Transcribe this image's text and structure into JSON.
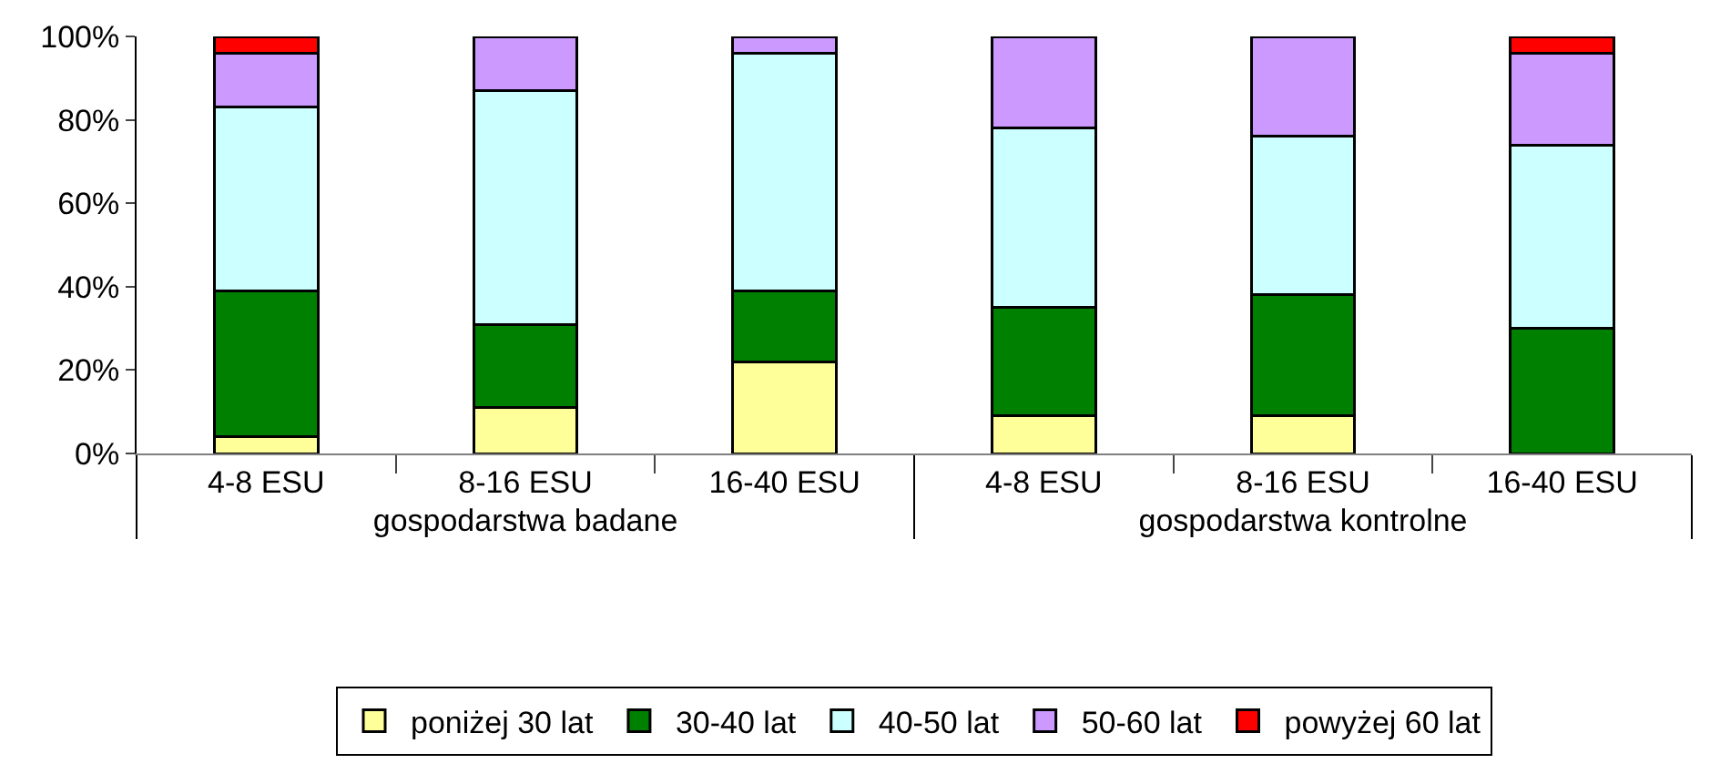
{
  "chart_data": {
    "type": "bar",
    "stacked": true,
    "categories": [
      "4-8 ESU",
      "8-16 ESU",
      "16-40 ESU",
      "4-8 ESU",
      "8-16 ESU",
      "16-40 ESU"
    ],
    "annotations": [
      "gospodarstwa badane",
      "gospodarstwa kontrolne"
    ],
    "series": [
      {
        "name": "poniżej 30 lat",
        "color": "#ffff99",
        "values": [
          4,
          11,
          22,
          9,
          9,
          null
        ]
      },
      {
        "name": "30-40 lat",
        "color": "#008000",
        "values": [
          35,
          20,
          17,
          26,
          29,
          30
        ]
      },
      {
        "name": "40-50 lat",
        "color": "#ccffff",
        "values": [
          44,
          56,
          57,
          43,
          38,
          44
        ]
      },
      {
        "name": "50-60 lat",
        "color": "#cc99ff",
        "values": [
          13,
          13,
          4,
          22,
          24,
          22
        ]
      },
      {
        "name": "powyżej 60 lat",
        "color": "#ff0000",
        "values": [
          4,
          null,
          null,
          null,
          null,
          4
        ]
      }
    ],
    "ylim": [
      0,
      100
    ],
    "yticks": [
      {
        "value": 0,
        "label": "0%"
      },
      {
        "value": 20,
        "label": "20%"
      },
      {
        "value": 40,
        "label": "40%"
      },
      {
        "value": 60,
        "label": "60%"
      },
      {
        "value": 80,
        "label": "80%"
      },
      {
        "value": 100,
        "label": "100%"
      }
    ],
    "grid": false,
    "legend": "bottom"
  }
}
